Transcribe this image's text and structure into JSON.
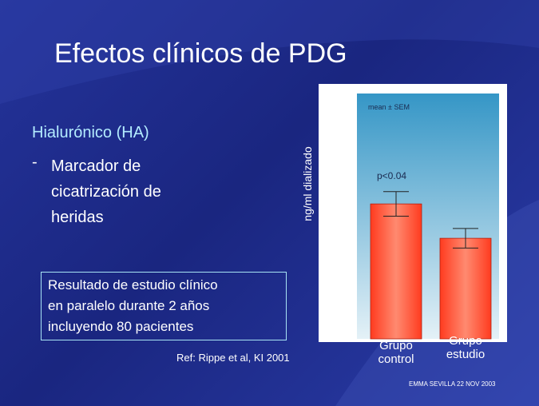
{
  "slide": {
    "title": "Efectos clínicos de PDG",
    "subtitle": "Hialurónico (HA)",
    "bullet_marker": "-",
    "bullet": "Marcador  de cicatrización de heridas",
    "box_lines": [
      "Resultado de estudio clínico",
      "en paralelo durante 2 años",
      "incluyendo  80 pacientes"
    ],
    "ref": "Ref: Rippe et al, KI 2001",
    "footer": "EMMA  SEVILLA 22 NOV 2003"
  },
  "chart_data": {
    "type": "bar",
    "ylabel": "ng/ml dializado",
    "annotations": [
      "mean ± SEM",
      "p<0.04"
    ],
    "categories": [
      "Grupo control",
      "Grupo estudio"
    ],
    "values": [
      55,
      41
    ],
    "errors": [
      5,
      4
    ],
    "color": "#ff3b1f",
    "ylim": [
      0,
      100
    ]
  }
}
